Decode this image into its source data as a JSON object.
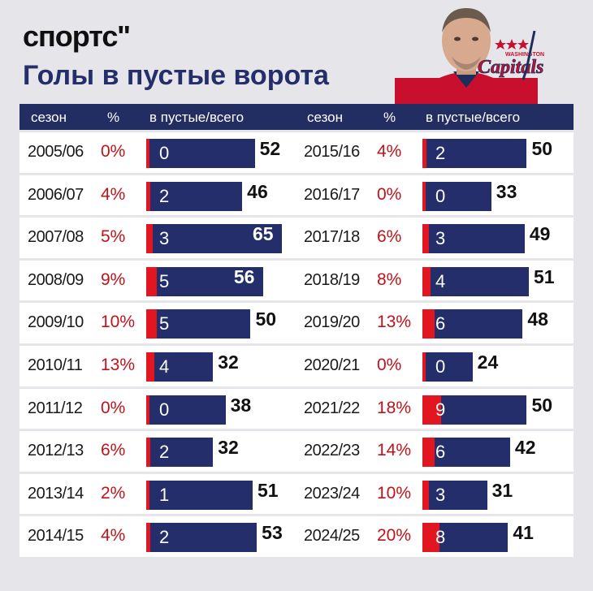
{
  "brand": {
    "logo_text": "спортс''"
  },
  "title": "Голы в пустые ворота",
  "team_logo": {
    "wordmark": "Capitals",
    "city": "WASHINGTON"
  },
  "headers": {
    "season": "сезон",
    "pct": "%",
    "bar": "в пустые/всего"
  },
  "colors": {
    "navy": "#232e6a",
    "red": "#e21620",
    "pct_red": "#c1121a"
  },
  "chart_data": {
    "type": "bar",
    "xlim": [
      0,
      65
    ],
    "left": [
      {
        "season": "2005/06",
        "pct": "0%",
        "empty_net": 0,
        "total": 52
      },
      {
        "season": "2006/07",
        "pct": "4%",
        "empty_net": 2,
        "total": 46
      },
      {
        "season": "2007/08",
        "pct": "5%",
        "empty_net": 3,
        "total": 65
      },
      {
        "season": "2008/09",
        "pct": "9%",
        "empty_net": 5,
        "total": 56
      },
      {
        "season": "2009/10",
        "pct": "10%",
        "empty_net": 5,
        "total": 50
      },
      {
        "season": "2010/11",
        "pct": "13%",
        "empty_net": 4,
        "total": 32
      },
      {
        "season": "2011/12",
        "pct": "0%",
        "empty_net": 0,
        "total": 38
      },
      {
        "season": "2012/13",
        "pct": "6%",
        "empty_net": 2,
        "total": 32
      },
      {
        "season": "2013/14",
        "pct": "2%",
        "empty_net": 1,
        "total": 51
      },
      {
        "season": "2014/15",
        "pct": "4%",
        "empty_net": 2,
        "total": 53
      }
    ],
    "right": [
      {
        "season": "2015/16",
        "pct": "4%",
        "empty_net": 2,
        "total": 50
      },
      {
        "season": "2016/17",
        "pct": "0%",
        "empty_net": 0,
        "total": 33
      },
      {
        "season": "2017/18",
        "pct": "6%",
        "empty_net": 3,
        "total": 49
      },
      {
        "season": "2018/19",
        "pct": "8%",
        "empty_net": 4,
        "total": 51
      },
      {
        "season": "2019/20",
        "pct": "13%",
        "empty_net": 6,
        "total": 48
      },
      {
        "season": "2020/21",
        "pct": "0%",
        "empty_net": 0,
        "total": 24
      },
      {
        "season": "2021/22",
        "pct": "18%",
        "empty_net": 9,
        "total": 50
      },
      {
        "season": "2022/23",
        "pct": "14%",
        "empty_net": 6,
        "total": 42
      },
      {
        "season": "2023/24",
        "pct": "10%",
        "empty_net": 3,
        "total": 31
      },
      {
        "season": "2024/25",
        "pct": "20%",
        "empty_net": 8,
        "total": 41
      }
    ]
  }
}
